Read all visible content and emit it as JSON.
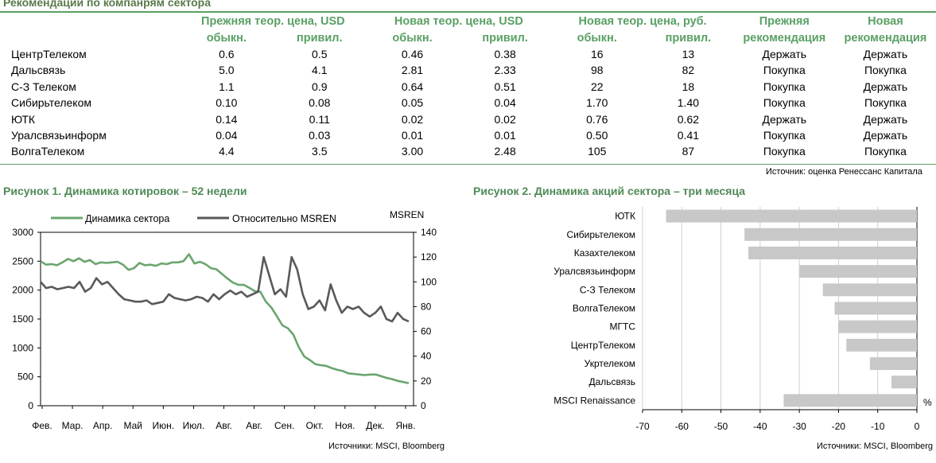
{
  "table": {
    "title": "Рекомендации по компанрям сектора",
    "group_headers": [
      "Прежняя теор. цена, USD",
      "Новая теор. цена, USD",
      "Новая теор. цена, руб."
    ],
    "sub_headers": [
      "обыкн.",
      "привил.",
      "обыкн.",
      "привил.",
      "обыкн.",
      "привил."
    ],
    "rec_headers": {
      "prev_line1": "Прежняя",
      "prev_line2": "рекомендация",
      "new_line1": "Новая",
      "new_line2": "рекомендация"
    },
    "rows": [
      {
        "name": "ЦентрТелеком",
        "v": [
          "0.6",
          "0.5",
          "0.46",
          "0.38",
          "16",
          "13"
        ],
        "prev": "Держать",
        "new": "Держать"
      },
      {
        "name": "Дальсвязь",
        "v": [
          "5.0",
          "4.1",
          "2.81",
          "2.33",
          "98",
          "82"
        ],
        "prev": "Покупка",
        "new": "Покупка"
      },
      {
        "name": "С-З Телеком",
        "v": [
          "1.1",
          "0.9",
          "0.64",
          "0.51",
          "22",
          "18"
        ],
        "prev": "Покупка",
        "new": "Держать"
      },
      {
        "name": "Сибирьтелеком",
        "v": [
          "0.10",
          "0.08",
          "0.05",
          "0.04",
          "1.70",
          "1.40"
        ],
        "prev": "Покупка",
        "new": "Покупка"
      },
      {
        "name": "ЮТК",
        "v": [
          "0.14",
          "0.11",
          "0.02",
          "0.02",
          "0.76",
          "0.62"
        ],
        "prev": "Держать",
        "new": "Держать"
      },
      {
        "name": "Уралсвязьинформ",
        "v": [
          "0.04",
          "0.03",
          "0.01",
          "0.01",
          "0.50",
          "0.41"
        ],
        "prev": "Покупка",
        "new": "Держать"
      },
      {
        "name": "ВолгаТелеком",
        "v": [
          "4.4",
          "3.5",
          "3.00",
          "2.48",
          "105",
          "87"
        ],
        "prev": "Покупка",
        "new": "Покупка"
      }
    ],
    "source": "Источник: оценка Ренессанс Капитала"
  },
  "chart_data": [
    {
      "type": "line",
      "title": "Рисунок 1. Динамика котировок – 52 недели",
      "y_right_label": "MSREN",
      "x_ticks": [
        "Фев.",
        "Мар.",
        "Апр.",
        "Май",
        "Июн.",
        "Июл.",
        "Авг.",
        "Авг.",
        "Сен.",
        "Окт.",
        "Ноя.",
        "Дек.",
        "Янв."
      ],
      "ylim_left": [
        0,
        3000
      ],
      "yticks_left": [
        0,
        500,
        1000,
        1500,
        2000,
        2500,
        3000
      ],
      "ylim_right": [
        0,
        140
      ],
      "yticks_right": [
        0,
        20,
        40,
        60,
        80,
        100,
        120,
        140
      ],
      "legend_position": "top",
      "grid": false,
      "series": [
        {
          "name": "Динамика сектора",
          "axis": "left",
          "color": "#6aa56e",
          "values": [
            2500,
            2440,
            2450,
            2430,
            2480,
            2540,
            2500,
            2550,
            2490,
            2520,
            2450,
            2480,
            2470,
            2480,
            2490,
            2440,
            2350,
            2380,
            2470,
            2430,
            2440,
            2420,
            2460,
            2450,
            2480,
            2480,
            2500,
            2620,
            2460,
            2490,
            2450,
            2380,
            2360,
            2280,
            2200,
            2130,
            2090,
            2090,
            2040,
            1980,
            1970,
            1800,
            1700,
            1550,
            1390,
            1340,
            1230,
            1010,
            850,
            790,
            720,
            700,
            690,
            650,
            620,
            600,
            560,
            550,
            540,
            530,
            540,
            540,
            510,
            480,
            460,
            430,
            410,
            390
          ]
        },
        {
          "name": "Относительно MSREN",
          "axis": "right",
          "color": "#595959",
          "values": [
            100,
            95,
            96,
            94,
            95,
            96,
            95,
            100,
            92,
            95,
            103,
            98,
            100,
            95,
            90,
            86,
            85,
            84,
            84,
            85,
            82,
            83,
            84,
            90,
            87,
            86,
            85,
            86,
            88,
            87,
            84,
            90,
            86,
            90,
            93,
            90,
            92,
            88,
            90,
            92,
            120,
            105,
            90,
            94,
            88,
            120,
            110,
            90,
            78,
            80,
            85,
            77,
            98,
            85,
            75,
            80,
            78,
            80,
            75,
            72,
            75,
            80,
            70,
            68,
            75,
            70,
            68
          ]
        }
      ]
    },
    {
      "type": "bar",
      "orientation": "horizontal",
      "title": "Рисунок 2. Динамика акций сектора – три месяца",
      "unit_label": "%",
      "categories": [
        "ЮТК",
        "Сибирьтелеком",
        "Казахтелеком",
        "Уралсвязьинформ",
        "С-З Телеком",
        "ВолгаТелеком",
        "МГТС",
        "ЦентрТелеком",
        "Укртелеком",
        "Дальсвязь",
        "MSCI Renaissance"
      ],
      "values": [
        -64,
        -44,
        -43,
        -30,
        -24,
        -21,
        -20,
        -18,
        -12,
        -6.5,
        -34
      ],
      "xlim": [
        -70,
        0
      ],
      "xticks": [
        -70,
        -60,
        -50,
        -40,
        -30,
        -20,
        -10,
        0
      ],
      "grid": true,
      "bar_color": "#c8c8c8"
    }
  ],
  "fig1": {
    "title": "Рисунок 1. Динамика котировок – 52 недели",
    "legend_sector": "Динамика сектора",
    "legend_msren": "Относительно MSREN",
    "source": "Источники: MSCI, Bloomberg"
  },
  "fig2": {
    "title": "Рисунок 2. Динамика акций сектора – три месяца",
    "source": "Источники: MSCI, Bloomberg"
  }
}
